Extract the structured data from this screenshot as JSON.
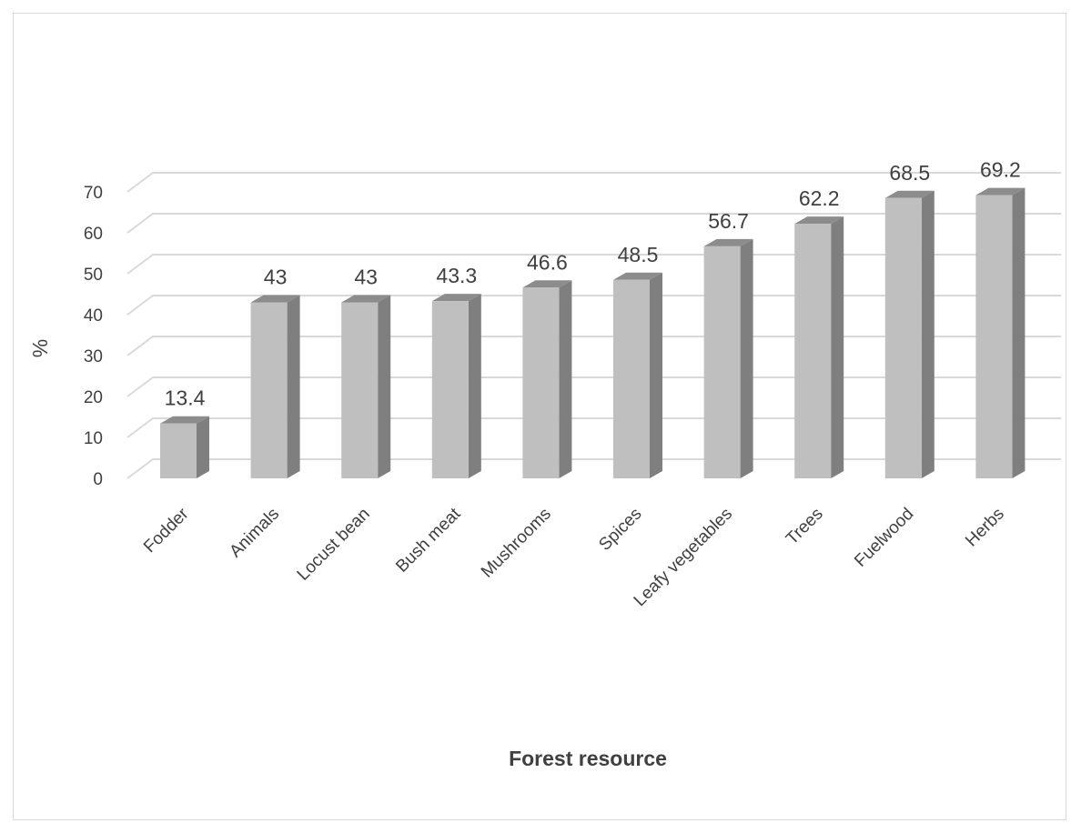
{
  "chart_data": {
    "type": "bar",
    "title": "",
    "xlabel": "Forest resource",
    "ylabel": "%",
    "ylim": [
      0,
      70
    ],
    "y_ticks": [
      0,
      10,
      20,
      30,
      40,
      50,
      60,
      70
    ],
    "grid": true,
    "legend": "none",
    "style": "3d-column",
    "categories": [
      "Fodder",
      "Animals",
      "Locust bean",
      "Bush meat",
      "Mushrooms",
      "Spices",
      "Leafy vegetables",
      "Trees",
      "Fuelwood",
      "Herbs"
    ],
    "values": [
      13.4,
      43,
      43,
      43.3,
      46.6,
      48.5,
      56.7,
      62.2,
      68.5,
      69.2
    ],
    "data_labels": [
      "13.4",
      "43",
      "43",
      "43.3",
      "46.6",
      "48.5",
      "56.7",
      "62.2",
      "68.5",
      "69.2"
    ],
    "colors": {
      "front": "#bfbfbf",
      "side": "#7f7f7f",
      "top": "#8c8c8c",
      "grid": "#d9d9d9",
      "text": "#404040"
    }
  }
}
